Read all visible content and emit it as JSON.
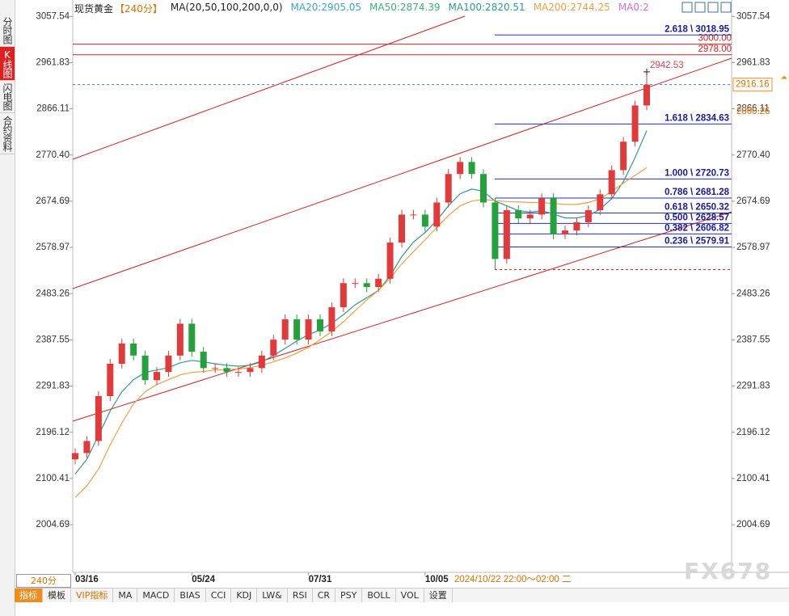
{
  "header": {
    "symbol": "现货黄金",
    "period": "【240分】",
    "indicator": "MA(20,50,100,200,0,0)",
    "ma_labels": [
      {
        "text": "MA20:2905.05",
        "color": "#39a9c9"
      },
      {
        "text": "MA50:2874.39",
        "color": "#3cb371"
      },
      {
        "text": "MA100:2820.51",
        "color": "#2e9b8f"
      },
      {
        "text": "MA200:2744.25",
        "color": "#f0a040"
      },
      {
        "text": "MA0:2",
        "color": "#d070d0"
      }
    ]
  },
  "sidebar": {
    "tabs": [
      "分时图",
      "K线图",
      "闪电图",
      "合约资料"
    ],
    "active": 1
  },
  "toolbar": {
    "period": "240分",
    "tabs": [
      "指标",
      "模板",
      "VIP指标",
      "MA",
      "MACD",
      "BIAS",
      "CCI",
      "KDJ",
      "LW&",
      "RSI",
      "CR",
      "PSY",
      "BOLL",
      "VOL",
      "设置"
    ],
    "active": 0,
    "highlight": 2
  },
  "watermark": "FX678",
  "chart_data": {
    "type": "candlestick",
    "categories": [
      "03/16",
      null,
      null,
      null,
      null,
      null,
      null,
      null,
      null,
      null,
      "05/24",
      null,
      null,
      null,
      null,
      null,
      null,
      null,
      null,
      null,
      "07/31",
      null,
      null,
      null,
      null,
      null,
      null,
      null,
      null,
      null,
      "10/05",
      null,
      null,
      null,
      null,
      null,
      null,
      null,
      null,
      null,
      null,
      null,
      null,
      null,
      null,
      null,
      null,
      null,
      null,
      null
    ],
    "open": [
      2140,
      2153,
      2178,
      2271,
      2338,
      2380,
      2355,
      2304,
      2321,
      2355,
      2421,
      2363,
      2329,
      2329,
      2321,
      2321,
      2329,
      2355,
      2388,
      2430,
      2388,
      2430,
      2405,
      2455,
      2505,
      2505,
      2497,
      2514,
      2589,
      2647,
      2647,
      2622,
      2672,
      2731,
      2756,
      2731,
      2672,
      2555,
      2656,
      2639,
      2647,
      2681,
      2606,
      2614,
      2631,
      2656,
      2689,
      2739,
      2798,
      2873
    ],
    "high": [
      2163,
      2188,
      2281,
      2348,
      2390,
      2390,
      2365,
      2331,
      2365,
      2431,
      2431,
      2373,
      2339,
      2339,
      2331,
      2339,
      2365,
      2398,
      2440,
      2440,
      2440,
      2440,
      2465,
      2515,
      2515,
      2515,
      2524,
      2599,
      2657,
      2657,
      2657,
      2682,
      2741,
      2766,
      2766,
      2741,
      2682,
      2666,
      2666,
      2657,
      2691,
      2691,
      2624,
      2641,
      2666,
      2699,
      2749,
      2808,
      2883,
      2942.53
    ],
    "low": [
      2130,
      2143,
      2168,
      2261,
      2328,
      2345,
      2294,
      2294,
      2311,
      2345,
      2353,
      2319,
      2319,
      2311,
      2311,
      2311,
      2319,
      2345,
      2378,
      2378,
      2378,
      2395,
      2395,
      2445,
      2495,
      2487,
      2487,
      2504,
      2579,
      2637,
      2612,
      2612,
      2662,
      2721,
      2721,
      2662,
      2533,
      2545,
      2629,
      2629,
      2637,
      2596,
      2596,
      2604,
      2621,
      2646,
      2679,
      2729,
      2788,
      2863
    ],
    "close": [
      2153,
      2178,
      2271,
      2338,
      2380,
      2355,
      2304,
      2321,
      2355,
      2421,
      2363,
      2329,
      2329,
      2321,
      2321,
      2329,
      2355,
      2388,
      2430,
      2388,
      2430,
      2405,
      2455,
      2505,
      2505,
      2497,
      2514,
      2589,
      2647,
      2647,
      2622,
      2672,
      2731,
      2756,
      2731,
      2672,
      2555,
      2656,
      2639,
      2647,
      2681,
      2606,
      2614,
      2631,
      2656,
      2689,
      2739,
      2798,
      2873,
      2916.16
    ],
    "up_color": "#e23a3a",
    "down_color": "#25a03c",
    "series": [
      {
        "color": "#2e9b8f",
        "values": [
          2110,
          2140,
          2190,
          2240,
          2280,
          2305,
          2320,
          2325,
          2330,
          2340,
          2345,
          2342,
          2338,
          2335,
          2333,
          2335,
          2342,
          2355,
          2370,
          2385,
          2398,
          2408,
          2422,
          2440,
          2460,
          2475,
          2490,
          2520,
          2560,
          2590,
          2610,
          2635,
          2665,
          2690,
          2700,
          2695,
          2675,
          2665,
          2655,
          2652,
          2655,
          2648,
          2640,
          2640,
          2645,
          2658,
          2680,
          2715,
          2765,
          2820.51
        ]
      },
      {
        "color": "#f0a040",
        "values": [
          2061,
          2085,
          2120,
          2170,
          2215,
          2255,
          2280,
          2295,
          2305,
          2315,
          2320,
          2322,
          2325,
          2326,
          2327,
          2330,
          2335,
          2342,
          2350,
          2360,
          2372,
          2388,
          2405,
          2425,
          2448,
          2470,
          2490,
          2515,
          2545,
          2570,
          2595,
          2620,
          2645,
          2665,
          2675,
          2678,
          2676,
          2674,
          2673,
          2672,
          2672,
          2670,
          2668,
          2668,
          2672,
          2680,
          2695,
          2712,
          2728,
          2744.25
        ]
      }
    ],
    "ylim": [
      1906,
      3078
    ],
    "yticks": [
      3057.54,
      2961.83,
      2866.11,
      2770.4,
      2674.69,
      2578.97,
      2483.26,
      2387.55,
      2291.83,
      2196.12,
      2100.41,
      2004.69
    ],
    "ytick_labels": [
      "3057.54",
      "2961.83",
      "2866.11",
      "2770.40",
      "2674.69",
      "2578.97",
      "2483.26",
      "2387.55",
      "2291.83",
      "2196.12",
      "2100.41",
      "2004.69"
    ],
    "fib_levels": [
      {
        "value": 3018.95,
        "label": "2.618 \\ 3018.95"
      },
      {
        "value": 2834.63,
        "label": "1.618 \\ 2834.63"
      },
      {
        "value": 2720.73,
        "label": "1.000 \\ 2720.73"
      },
      {
        "value": 2681.28,
        "label": "0.786 \\ 2681.28"
      },
      {
        "value": 2650.32,
        "label": "0.618 \\ 2650.32"
      },
      {
        "value": 2628.57,
        "label": "0.500 \\ 2628.57"
      },
      {
        "value": 2606.82,
        "label": "0.382 \\ 2606.82"
      },
      {
        "value": 2579.91,
        "label": "0.236 \\ 2579.91"
      }
    ],
    "price_lines": [
      {
        "value": 3000,
        "label": "3000.00",
        "color": "#d42020"
      },
      {
        "value": 2978,
        "label": "2978.00",
        "color": "#d42020"
      }
    ],
    "ma_price": 2860.26,
    "crosshair_label": "2024/10/22 22:00～02:00 二"
  }
}
